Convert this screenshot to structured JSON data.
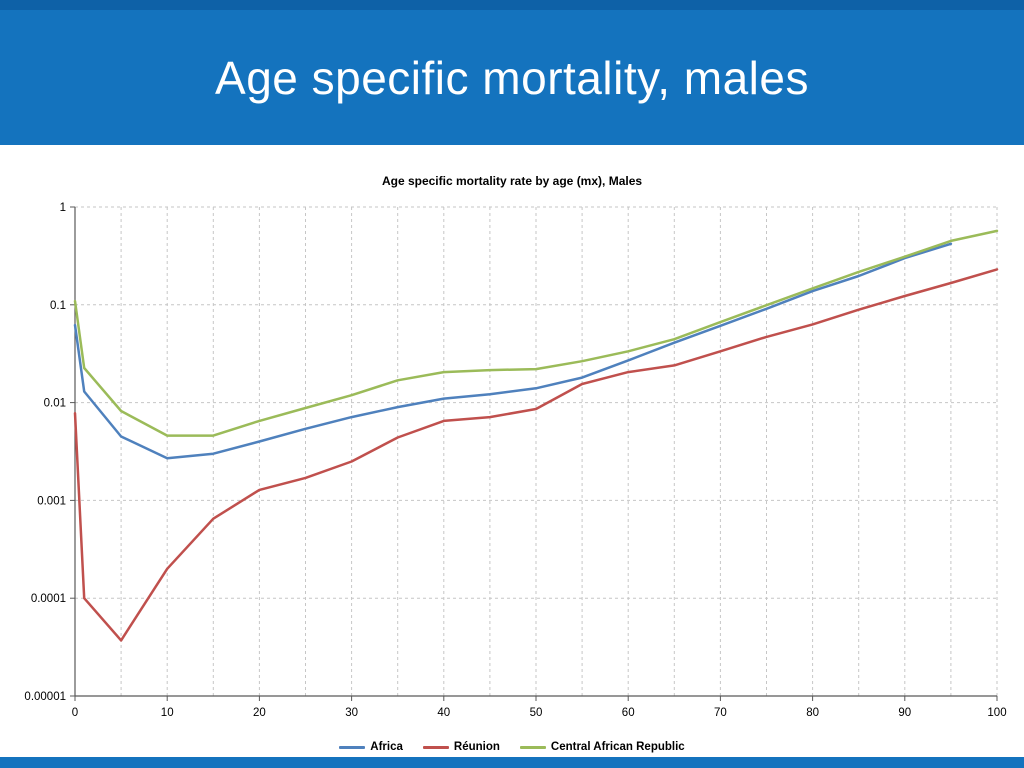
{
  "slide": {
    "title": "Age specific mortality, males",
    "header_bg": "#1473be",
    "header_top_strip_bg": "#0e61a7",
    "footer_bg": "#1473be"
  },
  "chart_data": {
    "type": "line",
    "title": "Age specific mortality rate by age (mx), Males",
    "xlabel": "",
    "ylabel": "",
    "y_scale": "log",
    "xlim": [
      0,
      100
    ],
    "ylim": [
      1e-05,
      1
    ],
    "x_ticks": [
      0,
      10,
      20,
      30,
      40,
      50,
      60,
      70,
      80,
      90,
      100
    ],
    "y_ticks": [
      1,
      0.1,
      0.01,
      0.001,
      0.0001,
      1e-05
    ],
    "y_tick_labels": [
      "1",
      "0.1",
      "0.01",
      "0.001",
      "0.0001",
      "0.00001"
    ],
    "grid": {
      "vertical_every": 5,
      "style": "dashed",
      "color": "#c6c6c6"
    },
    "axis_color": "#595959",
    "legend_position": "bottom",
    "x": [
      0,
      1,
      5,
      10,
      15,
      20,
      25,
      30,
      35,
      40,
      45,
      50,
      55,
      60,
      65,
      70,
      75,
      80,
      85,
      90,
      95,
      100
    ],
    "series": [
      {
        "name": "Africa",
        "color": "#4f81bd",
        "values": [
          0.062,
          0.013,
          0.0045,
          0.0027,
          0.003,
          0.004,
          0.0054,
          0.0071,
          0.009,
          0.011,
          0.0122,
          0.014,
          0.018,
          0.027,
          0.041,
          0.061,
          0.091,
          0.138,
          0.197,
          0.3,
          0.42,
          null
        ]
      },
      {
        "name": "Réunion",
        "color": "#c0504d",
        "values": [
          0.0078,
          0.0001,
          3.7e-05,
          0.0002,
          0.00065,
          0.00128,
          0.0017,
          0.0025,
          0.0044,
          0.0065,
          0.0071,
          0.0086,
          0.0155,
          0.0205,
          0.024,
          0.0335,
          0.047,
          0.063,
          0.089,
          0.123,
          0.167,
          0.23
        ]
      },
      {
        "name": "Central African Republic",
        "color": "#9bbb59",
        "values": [
          0.109,
          0.0226,
          0.0082,
          0.0046,
          0.0046,
          0.0065,
          0.0088,
          0.0119,
          0.0169,
          0.0205,
          0.0215,
          0.022,
          0.0265,
          0.0335,
          0.0445,
          0.0665,
          0.099,
          0.147,
          0.217,
          0.31,
          0.45,
          0.57
        ]
      }
    ]
  }
}
